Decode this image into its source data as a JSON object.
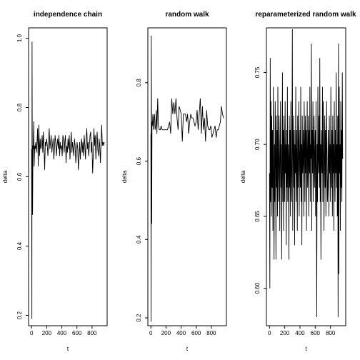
{
  "chart_data": [
    {
      "type": "line",
      "title": "independence chain",
      "xlabel": "t",
      "ylabel": "delta",
      "xlim": [
        -40,
        1000
      ],
      "ylim": [
        0.17,
        1.03
      ],
      "xticks": [
        0,
        200,
        400,
        600,
        800
      ],
      "xtick_labels": [
        "0",
        "200",
        "400",
        "600",
        "800"
      ],
      "yticks": [
        0.2,
        0.4,
        0.6,
        0.8,
        1.0
      ],
      "ytick_labels": [
        "0.2",
        "0.4",
        "0.6",
        "0.8",
        "1.0"
      ],
      "series": [
        {
          "x": [
            0,
            4,
            6,
            9,
            13,
            18,
            22,
            28,
            34,
            41,
            48,
            55,
            63,
            72,
            80,
            88,
            96,
            105,
            114,
            122,
            131,
            140,
            148,
            156,
            165,
            173,
            182,
            190,
            199,
            208,
            216,
            225,
            233,
            242,
            251,
            259,
            268,
            276,
            285,
            294,
            302,
            311,
            319,
            328,
            336,
            345,
            354,
            362,
            371,
            379,
            388,
            396,
            405,
            414,
            422,
            431,
            439,
            448,
            456,
            465,
            474,
            482,
            491,
            499,
            508,
            516,
            525,
            534,
            542,
            551,
            559,
            568,
            576,
            585,
            594,
            602,
            611,
            619,
            628,
            636,
            645,
            654,
            662,
            671,
            679,
            688,
            696,
            705,
            714,
            722,
            731,
            739,
            748,
            756,
            765,
            774,
            782,
            791,
            799,
            808,
            816,
            825,
            834,
            842,
            851,
            859,
            868,
            876,
            885,
            894,
            902,
            911,
            919,
            928,
            936,
            945,
            954,
            962
          ],
          "y": [
            0.68,
            0.19,
            0.99,
            0.68,
            0.49,
            0.69,
            0.68,
            0.76,
            0.63,
            0.69,
            0.68,
            0.7,
            0.67,
            0.7,
            0.74,
            0.63,
            0.75,
            0.66,
            0.71,
            0.68,
            0.69,
            0.72,
            0.67,
            0.73,
            0.68,
            0.62,
            0.7,
            0.69,
            0.71,
            0.69,
            0.66,
            0.7,
            0.74,
            0.68,
            0.7,
            0.72,
            0.67,
            0.69,
            0.71,
            0.65,
            0.68,
            0.72,
            0.7,
            0.66,
            0.69,
            0.71,
            0.68,
            0.72,
            0.66,
            0.7,
            0.68,
            0.69,
            0.66,
            0.72,
            0.71,
            0.67,
            0.7,
            0.72,
            0.64,
            0.69,
            0.67,
            0.71,
            0.68,
            0.72,
            0.65,
            0.69,
            0.73,
            0.67,
            0.7,
            0.68,
            0.66,
            0.71,
            0.69,
            0.64,
            0.67,
            0.7,
            0.68,
            0.62,
            0.66,
            0.7,
            0.65,
            0.69,
            0.71,
            0.67,
            0.7,
            0.66,
            0.72,
            0.69,
            0.65,
            0.71,
            0.74,
            0.68,
            0.7,
            0.66,
            0.69,
            0.72,
            0.73,
            0.67,
            0.7,
            0.61,
            0.66,
            0.74,
            0.69,
            0.72,
            0.65,
            0.7,
            0.73,
            0.68,
            0.66,
            0.71,
            0.69,
            0.64,
            0.7,
            0.75,
            0.69,
            0.7,
            0.69,
            0.7
          ]
        }
      ]
    },
    {
      "type": "line",
      "title": "random walk",
      "xlabel": "t",
      "ylabel": "delta",
      "xlim": [
        -40,
        1000
      ],
      "ylim": [
        0.18,
        0.94
      ],
      "xticks": [
        0,
        200,
        400,
        600,
        800
      ],
      "xtick_labels": [
        "0",
        "200",
        "400",
        "600",
        "800"
      ],
      "yticks": [
        0.2,
        0.4,
        0.6,
        0.8
      ],
      "ytick_labels": [
        "0.2",
        "0.4",
        "0.6",
        "0.8"
      ],
      "series": [
        {
          "x": [
            0,
            3,
            5,
            8,
            11,
            15,
            20,
            26,
            33,
            40,
            48,
            56,
            64,
            72,
            80,
            90,
            100,
            112,
            124,
            136,
            150,
            164,
            178,
            192,
            206,
            220,
            234,
            248,
            262,
            276,
            290,
            304,
            318,
            332,
            346,
            360,
            374,
            388,
            402,
            416,
            430,
            444,
            458,
            472,
            486,
            500,
            514,
            528,
            542,
            556,
            570,
            584,
            598,
            612,
            626,
            640,
            654,
            668,
            682,
            696,
            710,
            724,
            738,
            752,
            766,
            780,
            794,
            808,
            822,
            836,
            850,
            864,
            878,
            892,
            906,
            920,
            934,
            948,
            962
          ],
          "y": [
            0.67,
            0.19,
            0.92,
            0.72,
            0.44,
            0.7,
            0.69,
            0.72,
            0.68,
            0.71,
            0.72,
            0.68,
            0.69,
            0.73,
            0.67,
            0.76,
            0.69,
            0.68,
            0.68,
            0.69,
            0.68,
            0.68,
            0.68,
            0.68,
            0.68,
            0.68,
            0.69,
            0.7,
            0.67,
            0.76,
            0.72,
            0.75,
            0.72,
            0.76,
            0.71,
            0.68,
            0.74,
            0.73,
            0.72,
            0.65,
            0.72,
            0.72,
            0.72,
            0.7,
            0.72,
            0.67,
            0.7,
            0.72,
            0.71,
            0.71,
            0.7,
            0.69,
            0.7,
            0.73,
            0.68,
            0.72,
            0.76,
            0.67,
            0.74,
            0.68,
            0.71,
            0.65,
            0.73,
            0.69,
            0.68,
            0.68,
            0.69,
            0.66,
            0.67,
            0.68,
            0.69,
            0.66,
            0.68,
            0.68,
            0.69,
            0.7,
            0.74,
            0.72,
            0.71
          ]
        }
      ]
    },
    {
      "type": "line",
      "title": "reparameterized random walk",
      "xlabel": "t",
      "ylabel": "delta",
      "xlim": [
        -40,
        1000
      ],
      "ylim": [
        0.574,
        0.781
      ],
      "xticks": [
        0,
        200,
        400,
        600,
        800
      ],
      "xtick_labels": [
        "0",
        "200",
        "400",
        "600",
        "800"
      ],
      "yticks": [
        0.6,
        0.65,
        0.7,
        0.75
      ],
      "ytick_labels": [
        "0.60",
        "0.65",
        "0.70",
        "0.75"
      ],
      "series": [
        {
          "x": [
            0,
            5,
            10,
            15,
            20,
            25,
            30,
            35,
            40,
            45,
            50,
            55,
            60,
            65,
            70,
            75,
            80,
            85,
            90,
            95,
            100,
            105,
            110,
            115,
            120,
            125,
            130,
            135,
            140,
            145,
            150,
            155,
            160,
            165,
            170,
            175,
            180,
            185,
            190,
            195,
            200,
            205,
            210,
            215,
            220,
            225,
            230,
            235,
            240,
            245,
            250,
            255,
            260,
            265,
            270,
            275,
            280,
            285,
            290,
            295,
            300,
            305,
            310,
            315,
            320,
            325,
            330,
            335,
            340,
            345,
            350,
            355,
            360,
            365,
            370,
            375,
            380,
            385,
            390,
            395,
            400,
            405,
            410,
            415,
            420,
            425,
            430,
            435,
            440,
            445,
            450,
            455,
            460,
            465,
            470,
            475,
            480,
            485,
            490,
            495,
            500,
            505,
            510,
            515,
            520,
            525,
            530,
            535,
            540,
            545,
            550,
            555,
            560,
            565,
            570,
            575,
            580,
            585,
            590,
            595,
            600,
            605,
            610,
            615,
            620,
            625,
            630,
            635,
            640,
            645,
            650,
            655,
            660,
            665,
            670,
            675,
            680,
            685,
            690,
            695,
            700,
            705,
            710,
            715,
            720,
            725,
            730,
            735,
            740,
            745,
            750,
            755,
            760,
            765,
            770,
            775,
            780,
            785,
            790,
            795,
            800,
            805,
            810,
            815,
            820,
            825,
            830,
            835,
            840,
            845,
            850,
            855,
            860,
            865,
            870,
            875,
            880,
            885,
            890,
            895,
            900,
            905,
            910,
            915,
            920,
            925,
            930,
            935,
            940,
            945,
            950,
            955,
            960
          ],
          "y": [
            0.68,
            0.6,
            0.76,
            0.66,
            0.73,
            0.65,
            0.72,
            0.67,
            0.71,
            0.64,
            0.74,
            0.68,
            0.62,
            0.7,
            0.66,
            0.73,
            0.69,
            0.62,
            0.72,
            0.67,
            0.71,
            0.65,
            0.74,
            0.68,
            0.66,
            0.72,
            0.7,
            0.64,
            0.69,
            0.73,
            0.67,
            0.7,
            0.62,
            0.68,
            0.75,
            0.66,
            0.71,
            0.64,
            0.72,
            0.69,
            0.66,
            0.73,
            0.68,
            0.7,
            0.63,
            0.71,
            0.67,
            0.74,
            0.66,
            0.7,
            0.69,
            0.62,
            0.72,
            0.67,
            0.71,
            0.65,
            0.73,
            0.68,
            0.66,
            0.7,
            0.78,
            0.64,
            0.69,
            0.72,
            0.67,
            0.71,
            0.63,
            0.7,
            0.68,
            0.74,
            0.66,
            0.71,
            0.69,
            0.64,
            0.72,
            0.67,
            0.7,
            0.73,
            0.65,
            0.69,
            0.71,
            0.67,
            0.74,
            0.66,
            0.7,
            0.63,
            0.72,
            0.68,
            0.69,
            0.71,
            0.65,
            0.73,
            0.7,
            0.66,
            0.72,
            0.68,
            0.71,
            0.64,
            0.7,
            0.73,
            0.67,
            0.69,
            0.72,
            0.65,
            0.71,
            0.68,
            0.74,
            0.66,
            0.7,
            0.69,
            0.77,
            0.64,
            0.71,
            0.68,
            0.73,
            0.66,
            0.7,
            0.72,
            0.67,
            0.69,
            0.71,
            0.65,
            0.73,
            0.68,
            0.58,
            0.7,
            0.66,
            0.74,
            0.69,
            0.68,
            0.72,
            0.67,
            0.76,
            0.66,
            0.7,
            0.62,
            0.71,
            0.69,
            0.68,
            0.74,
            0.66,
            0.73,
            0.7,
            0.64,
            0.69,
            0.72,
            0.67,
            0.71,
            0.65,
            0.7,
            0.73,
            0.68,
            0.66,
            0.67,
            0.71,
            0.69,
            0.65,
            0.72,
            0.68,
            0.7,
            0.66,
            0.74,
            0.69,
            0.67,
            0.71,
            0.65,
            0.72,
            0.68,
            0.7,
            0.64,
            0.73,
            0.69,
            0.66,
            0.71,
            0.68,
            0.75,
            0.67,
            0.7,
            0.65,
            0.72,
            0.58,
            0.77,
            0.61,
            0.74,
            0.68,
            0.7,
            0.64,
            0.73,
            0.67,
            0.71,
            0.66,
            0.75,
            0.69
          ]
        }
      ]
    }
  ]
}
